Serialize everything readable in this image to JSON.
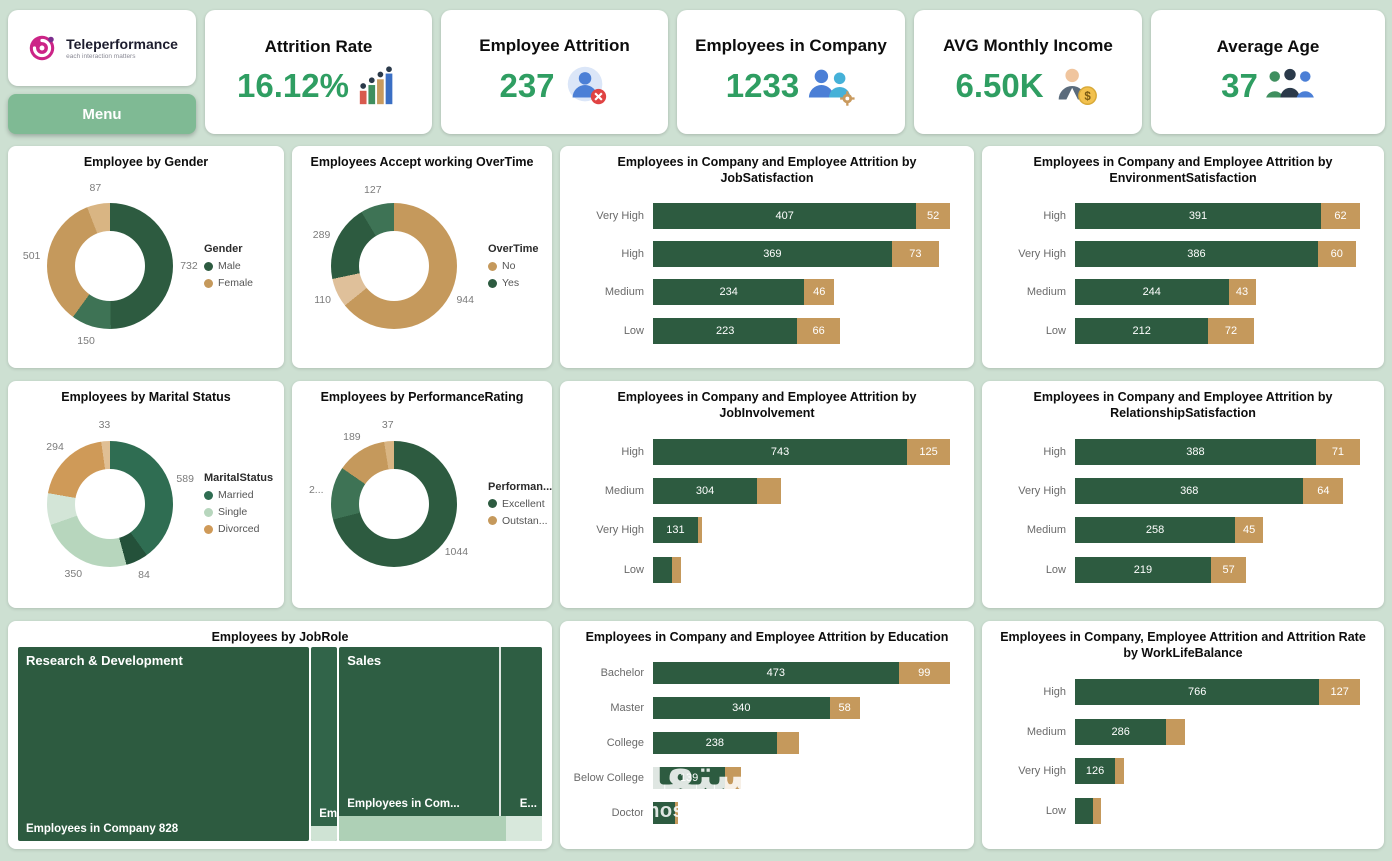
{
  "brand": {
    "name": "Teleperformance",
    "tagline": "each interaction matters",
    "menu_label": "Menu"
  },
  "kpis": [
    {
      "title": "Attrition Rate",
      "value": "16.12%",
      "icon": "attrition-rate-chart-icon"
    },
    {
      "title": "Employee Attrition",
      "value": "237",
      "icon": "employee-attrition-icon"
    },
    {
      "title": "Employees in Company",
      "value": "1233",
      "icon": "employees-in-company-icon"
    },
    {
      "title": "AVG Monthly Income",
      "value": "6.50K",
      "icon": "monthly-income-icon"
    },
    {
      "title": "Average Age",
      "value": "37",
      "icon": "average-age-icon"
    }
  ],
  "palette": {
    "background": "#cde0d2",
    "card": "#ffffff",
    "dark_green": "#2d5b40",
    "green_alt": "#3e7355",
    "tan": "#c5995c",
    "tan_light": "#dfc09a",
    "light_green": "#b7d6bd",
    "pale_green": "#d3e5d7",
    "kpi_value_green": "#2f9e62",
    "menu_green": "#7fba94"
  },
  "watermark": {
    "arabic": "مستقل",
    "domain": "mostaql.com"
  },
  "chart_data": [
    {
      "id": "gender",
      "type": "pie",
      "title": "Employee by Gender",
      "legend_title": "Gender",
      "legend": [
        {
          "label": "Male",
          "color": "#2d5b40"
        },
        {
          "label": "Female",
          "color": "#c5995c"
        }
      ],
      "segments": [
        {
          "value": 732,
          "label": "732",
          "color": "#2d5b40"
        },
        {
          "value": 150,
          "label": "150",
          "color": "#3e7355"
        },
        {
          "value": 501,
          "label": "501",
          "color": "#c5995c"
        },
        {
          "value": 87,
          "label": "87",
          "color": "#d9b583"
        }
      ]
    },
    {
      "id": "overtime",
      "type": "pie",
      "title": "Employees Accept working OverTime",
      "legend_title": "OverTime",
      "legend": [
        {
          "label": "No",
          "color": "#c5995c"
        },
        {
          "label": "Yes",
          "color": "#2d5b40"
        }
      ],
      "segments": [
        {
          "value": 944,
          "label": "944",
          "color": "#c5995c"
        },
        {
          "value": 110,
          "label": "110",
          "color": "#dfc09a"
        },
        {
          "value": 289,
          "label": "289",
          "color": "#2d5b40"
        },
        {
          "value": 127,
          "label": "127",
          "color": "#3e7355"
        }
      ]
    },
    {
      "id": "job-satisfaction",
      "type": "bar",
      "title": "Employees in Company and Employee Attrition by JobSatisfaction",
      "categories": [
        "Very High",
        "High",
        "Medium",
        "Low"
      ],
      "series": [
        {
          "name": "Employees in Company",
          "color": "#2d5b40",
          "values": [
            407,
            369,
            234,
            223
          ],
          "labels": [
            "407",
            "369",
            "234",
            "223"
          ]
        },
        {
          "name": "Employee Attrition",
          "color": "#c5995c",
          "values": [
            52,
            73,
            46,
            66
          ],
          "labels": [
            "52",
            "73",
            "46",
            "66"
          ]
        }
      ]
    },
    {
      "id": "environment-satisfaction",
      "type": "bar",
      "title": "Employees in Company and Employee Attrition by EnvironmentSatisfaction",
      "categories": [
        "High",
        "Very High",
        "Medium",
        "Low"
      ],
      "series": [
        {
          "name": "Employees in Company",
          "color": "#2d5b40",
          "values": [
            391,
            386,
            244,
            212
          ],
          "labels": [
            "391",
            "386",
            "244",
            "212"
          ]
        },
        {
          "name": "Employee Attrition",
          "color": "#c5995c",
          "values": [
            62,
            60,
            43,
            72
          ],
          "labels": [
            "62",
            "60",
            "43",
            "72"
          ]
        }
      ]
    },
    {
      "id": "marital-status",
      "type": "pie",
      "title": "Employees by Marital Status",
      "legend_title": "MaritalStatus",
      "legend": [
        {
          "label": "Married",
          "color": "#2f6d52"
        },
        {
          "label": "Single",
          "color": "#b7d6bd"
        },
        {
          "label": "Divorced",
          "color": "#cf9a58"
        }
      ],
      "segments": [
        {
          "value": 589,
          "label": "589",
          "color": "#2f6d52"
        },
        {
          "value": 84,
          "label": "84",
          "color": "#24513a"
        },
        {
          "value": 350,
          "label": "350",
          "color": "#b7d6bd"
        },
        {
          "value": 120,
          "label": "",
          "color": "#d3e5d7"
        },
        {
          "value": 294,
          "label": "294",
          "color": "#cf9a58"
        },
        {
          "value": 33,
          "label": "33",
          "color": "#e0bf94"
        }
      ]
    },
    {
      "id": "performance-rating",
      "type": "pie",
      "title": "Employees by PerformanceRating",
      "legend_title": "Performan...",
      "legend": [
        {
          "label": "Excellent",
          "color": "#2d5b40"
        },
        {
          "label": "Outstan...",
          "color": "#c5995c"
        }
      ],
      "segments": [
        {
          "value": 1044,
          "label": "1044",
          "color": "#2d5b40"
        },
        {
          "value": 200,
          "label": "2...",
          "color": "#3e7355"
        },
        {
          "value": 189,
          "label": "189",
          "color": "#c5995c"
        },
        {
          "value": 37,
          "label": "37",
          "color": "#d9b583"
        }
      ]
    },
    {
      "id": "job-involvement",
      "type": "bar",
      "title": "Employees in Company and Employee Attrition by JobInvolvement",
      "categories": [
        "High",
        "Medium",
        "Very High",
        "Low"
      ],
      "series": [
        {
          "name": "Employees in Company",
          "color": "#2d5b40",
          "values": [
            743,
            304,
            131,
            55
          ],
          "labels": [
            "743",
            "304",
            "131",
            ""
          ]
        },
        {
          "name": "Employee Attrition",
          "color": "#c5995c",
          "values": [
            125,
            71,
            13,
            28
          ],
          "labels": [
            "125",
            "",
            "",
            ""
          ]
        }
      ]
    },
    {
      "id": "relationship-satisfaction",
      "type": "bar",
      "title": "Employees in Company and Employee Attrition by RelationshipSatisfaction",
      "categories": [
        "High",
        "Very High",
        "Medium",
        "Low"
      ],
      "series": [
        {
          "name": "Employees in Company",
          "color": "#2d5b40",
          "values": [
            388,
            368,
            258,
            219
          ],
          "labels": [
            "388",
            "368",
            "258",
            "219"
          ]
        },
        {
          "name": "Employee Attrition",
          "color": "#c5995c",
          "values": [
            71,
            64,
            45,
            57
          ],
          "labels": [
            "71",
            "64",
            "45",
            "57"
          ]
        }
      ]
    },
    {
      "id": "job-role",
      "type": "treemap",
      "title": "Employees by JobRole",
      "blocks": [
        {
          "label": "Research & Development",
          "value_label": "Employees in Company 828",
          "color": "#2d5b40",
          "width": 56
        },
        {
          "label": "",
          "value_label": "Em...",
          "color": "#316449",
          "width": 5,
          "strip": {
            "color": "#cfe3d4",
            "height": 8
          }
        },
        {
          "label": "Sales",
          "value_label": "Employees in Com...",
          "extra_label": "E...",
          "color": "#2e5e43",
          "width": 39,
          "strip": {
            "color": "#aed0b6",
            "height": 13,
            "sub_color": "#d8e8dc",
            "sub_width": 18
          }
        }
      ]
    },
    {
      "id": "education",
      "type": "bar",
      "title": "Employees in Company and Employee Attrition by Education",
      "categories": [
        "Bachelor",
        "Master",
        "College",
        "Below College",
        "Doctor"
      ],
      "series": [
        {
          "name": "Employees in Company",
          "color": "#2d5b40",
          "values": [
            473,
            340,
            238,
            139,
            43
          ],
          "labels": [
            "473",
            "340",
            "238",
            "139",
            ""
          ]
        },
        {
          "name": "Employee Attrition",
          "color": "#c5995c",
          "values": [
            99,
            58,
            44,
            31,
            5
          ],
          "labels": [
            "99",
            "58",
            "",
            "",
            ""
          ]
        }
      ]
    },
    {
      "id": "work-life-balance",
      "type": "bar",
      "title": "Employees in Company, Employee Attrition and Attrition Rate by WorkLifeBalance",
      "categories": [
        "High",
        "Medium",
        "Very High",
        "Low"
      ],
      "series": [
        {
          "name": "Employees in Company",
          "color": "#2d5b40",
          "values": [
            766,
            286,
            126,
            55
          ],
          "labels": [
            "766",
            "286",
            "126",
            ""
          ]
        },
        {
          "name": "Employee Attrition",
          "color": "#c5995c",
          "values": [
            127,
            58,
            27,
            25
          ],
          "labels": [
            "127",
            "",
            "",
            ""
          ]
        }
      ]
    }
  ]
}
